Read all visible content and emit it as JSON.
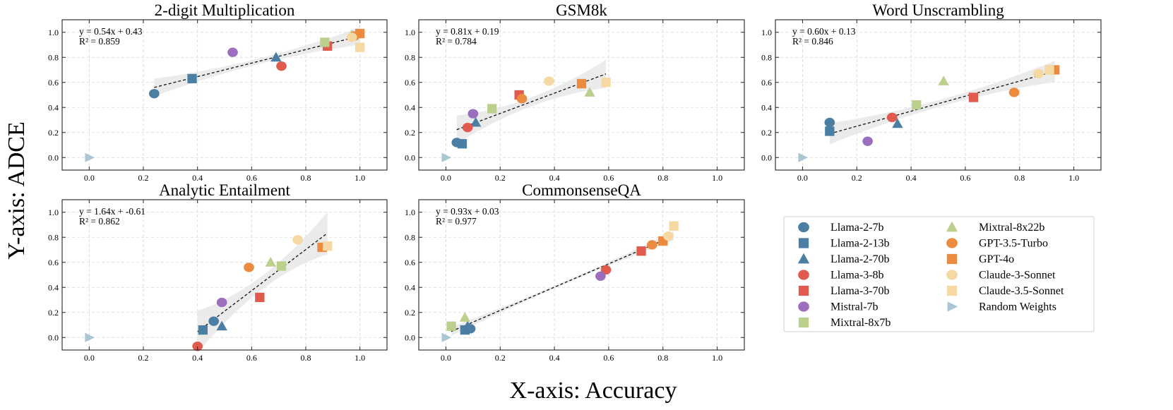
{
  "figure": {
    "xlabel": "X-axis: Accuracy",
    "ylabel": "Y-axis: ADCE"
  },
  "legend": {
    "entries": [
      {
        "label": "Llama-2-7b",
        "color": "#4a7fa3",
        "marker": "circle"
      },
      {
        "label": "Llama-2-13b",
        "color": "#4a7fa3",
        "marker": "square"
      },
      {
        "label": "Llama-2-70b",
        "color": "#4a7fa3",
        "marker": "triangle"
      },
      {
        "label": "Llama-3-8b",
        "color": "#e05a4e",
        "marker": "circle"
      },
      {
        "label": "Llama-3-70b",
        "color": "#e05a4e",
        "marker": "square"
      },
      {
        "label": "Mistral-7b",
        "color": "#9b6fbe",
        "marker": "circle"
      },
      {
        "label": "Mixtral-8x7b",
        "color": "#bcd08e",
        "marker": "square"
      },
      {
        "label": "Mixtral-8x22b",
        "color": "#bcd08e",
        "marker": "triangle"
      },
      {
        "label": "GPT-3.5-Turbo",
        "color": "#ec8a3f",
        "marker": "circle"
      },
      {
        "label": "GPT-4o",
        "color": "#ec8a3f",
        "marker": "square"
      },
      {
        "label": "Claude-3-Sonnet",
        "color": "#f6d8a3",
        "marker": "circle"
      },
      {
        "label": "Claude-3.5-Sonnet",
        "color": "#f6d8a3",
        "marker": "square"
      },
      {
        "label": "Random Weights",
        "color": "#a9c6d2",
        "marker": "triangle-right"
      }
    ]
  },
  "chart_data": [
    {
      "type": "scatter",
      "title": "2-digit Multiplication",
      "xlim": [
        -0.1,
        1.1
      ],
      "ylim": [
        -0.1,
        1.1
      ],
      "xticks": [
        0.0,
        0.2,
        0.4,
        0.6,
        0.8,
        1.0
      ],
      "yticks": [
        0.0,
        0.2,
        0.4,
        0.6,
        0.8,
        1.0
      ],
      "grid": true,
      "annotation_eq": "y = 0.54x + 0.43",
      "annotation_r2": "R² = 0.859",
      "fit": {
        "slope": 0.54,
        "intercept": 0.43,
        "x_range": [
          0.24,
          1.0
        ],
        "band": 0.05
      },
      "points": {
        "Llama-2-7b": [
          0.24,
          0.51
        ],
        "Llama-2-13b": [
          0.38,
          0.63
        ],
        "Llama-2-70b": [
          0.69,
          0.8
        ],
        "Llama-3-8b": [
          0.71,
          0.73
        ],
        "Llama-3-70b": [
          0.88,
          0.89
        ],
        "Mistral-7b": [
          0.53,
          0.84
        ],
        "Mixtral-8x7b": [
          0.87,
          0.92
        ],
        "Mixtral-8x22b": [
          0.97,
          0.98
        ],
        "GPT-3.5-Turbo": [
          0.98,
          0.97
        ],
        "GPT-4o": [
          1.0,
          0.99
        ],
        "Claude-3-Sonnet": [
          0.97,
          0.96
        ],
        "Claude-3.5-Sonnet": [
          1.0,
          0.88
        ],
        "Random Weights": [
          0.0,
          0.0
        ]
      }
    },
    {
      "type": "scatter",
      "title": "GSM8k",
      "xlim": [
        -0.1,
        1.1
      ],
      "ylim": [
        -0.1,
        1.1
      ],
      "xticks": [
        0.0,
        0.2,
        0.4,
        0.6,
        0.8,
        1.0
      ],
      "yticks": [
        0.0,
        0.2,
        0.4,
        0.6,
        0.8,
        1.0
      ],
      "grid": true,
      "annotation_eq": "y = 0.81x + 0.19",
      "annotation_r2": "R² = 0.784",
      "fit": {
        "slope": 0.81,
        "intercept": 0.19,
        "x_range": [
          0.04,
          0.59
        ],
        "band": 0.08
      },
      "points": {
        "Llama-2-7b": [
          0.04,
          0.12
        ],
        "Llama-2-13b": [
          0.06,
          0.11
        ],
        "Llama-2-70b": [
          0.11,
          0.28
        ],
        "Llama-3-8b": [
          0.08,
          0.24
        ],
        "Llama-3-70b": [
          0.27,
          0.5
        ],
        "Mistral-7b": [
          0.1,
          0.35
        ],
        "Mixtral-8x7b": [
          0.17,
          0.39
        ],
        "Mixtral-8x22b": [
          0.53,
          0.52
        ],
        "GPT-3.5-Turbo": [
          0.28,
          0.47
        ],
        "GPT-4o": [
          0.5,
          0.59
        ],
        "Claude-3-Sonnet": [
          0.38,
          0.61
        ],
        "Claude-3.5-Sonnet": [
          0.59,
          0.6
        ],
        "Random Weights": [
          0.0,
          0.0
        ]
      }
    },
    {
      "type": "scatter",
      "title": "Word Unscrambling",
      "xlim": [
        -0.1,
        1.1
      ],
      "ylim": [
        -0.1,
        1.1
      ],
      "xticks": [
        0.0,
        0.2,
        0.4,
        0.6,
        0.8,
        1.0
      ],
      "yticks": [
        0.0,
        0.2,
        0.4,
        0.6,
        0.8,
        1.0
      ],
      "grid": true,
      "annotation_eq": "y = 0.60x + 0.13",
      "annotation_r2": "R² = 0.846",
      "fit": {
        "slope": 0.6,
        "intercept": 0.13,
        "x_range": [
          0.1,
          0.93
        ],
        "band": 0.06
      },
      "points": {
        "Llama-2-7b": [
          0.1,
          0.28
        ],
        "Llama-2-13b": [
          0.1,
          0.21
        ],
        "Llama-2-70b": [
          0.35,
          0.27
        ],
        "Llama-3-8b": [
          0.33,
          0.32
        ],
        "Llama-3-70b": [
          0.63,
          0.48
        ],
        "Mistral-7b": [
          0.24,
          0.13
        ],
        "Mixtral-8x7b": [
          0.42,
          0.42
        ],
        "Mixtral-8x22b": [
          0.52,
          0.61
        ],
        "GPT-3.5-Turbo": [
          0.78,
          0.52
        ],
        "GPT-4o": [
          0.93,
          0.7
        ],
        "Claude-3-Sonnet": [
          0.87,
          0.67
        ],
        "Claude-3.5-Sonnet": [
          0.91,
          0.7
        ],
        "Random Weights": [
          0.0,
          0.0
        ]
      }
    },
    {
      "type": "scatter",
      "title": "Analytic Entailment",
      "xlim": [
        -0.1,
        1.1
      ],
      "ylim": [
        -0.1,
        1.1
      ],
      "xticks": [
        0.0,
        0.2,
        0.4,
        0.6,
        0.8,
        1.0
      ],
      "yticks": [
        0.0,
        0.2,
        0.4,
        0.6,
        0.8,
        1.0
      ],
      "grid": true,
      "annotation_eq": "y = 1.64x + -0.61",
      "annotation_r2": "R² = 0.862",
      "fit": {
        "slope": 1.64,
        "intercept": -0.61,
        "x_range": [
          0.4,
          0.88
        ],
        "band": 0.12
      },
      "points": {
        "Llama-2-7b": [
          0.46,
          0.13
        ],
        "Llama-2-13b": [
          0.42,
          0.06
        ],
        "Llama-2-70b": [
          0.49,
          0.09
        ],
        "Llama-3-8b": [
          0.4,
          -0.07
        ],
        "Llama-3-70b": [
          0.63,
          0.32
        ],
        "Mistral-7b": [
          0.49,
          0.28
        ],
        "Mixtral-8x7b": [
          0.71,
          0.57
        ],
        "Mixtral-8x22b": [
          0.67,
          0.6
        ],
        "GPT-3.5-Turbo": [
          0.59,
          0.56
        ],
        "GPT-4o": [
          0.86,
          0.72
        ],
        "Claude-3-Sonnet": [
          0.77,
          0.78
        ],
        "Claude-3.5-Sonnet": [
          0.88,
          0.73
        ],
        "Random Weights": [
          0.0,
          0.0
        ]
      }
    },
    {
      "type": "scatter",
      "title": "CommonsenseQA",
      "xlim": [
        -0.1,
        1.1
      ],
      "ylim": [
        -0.1,
        1.1
      ],
      "xticks": [
        0.0,
        0.2,
        0.4,
        0.6,
        0.8,
        1.0
      ],
      "yticks": [
        0.0,
        0.2,
        0.4,
        0.6,
        0.8,
        1.0
      ],
      "grid": true,
      "annotation_eq": "y = 0.93x + 0.03",
      "annotation_r2": "R² = 0.977",
      "fit": {
        "slope": 0.93,
        "intercept": 0.03,
        "x_range": [
          0.02,
          0.84
        ],
        "band": 0.025
      },
      "points": {
        "Llama-2-7b": [
          0.09,
          0.07
        ],
        "Llama-2-13b": [
          0.07,
          0.06
        ],
        "Llama-2-70b": [
          0.08,
          0.09
        ],
        "Llama-3-8b": [
          0.59,
          0.54
        ],
        "Llama-3-70b": [
          0.72,
          0.69
        ],
        "Mistral-7b": [
          0.57,
          0.49
        ],
        "Mixtral-8x7b": [
          0.02,
          0.09
        ],
        "Mixtral-8x22b": [
          0.07,
          0.16
        ],
        "GPT-3.5-Turbo": [
          0.76,
          0.74
        ],
        "GPT-4o": [
          0.8,
          0.77
        ],
        "Claude-3-Sonnet": [
          0.82,
          0.81
        ],
        "Claude-3.5-Sonnet": [
          0.84,
          0.89
        ],
        "Random Weights": [
          0.0,
          0.0
        ]
      }
    }
  ]
}
